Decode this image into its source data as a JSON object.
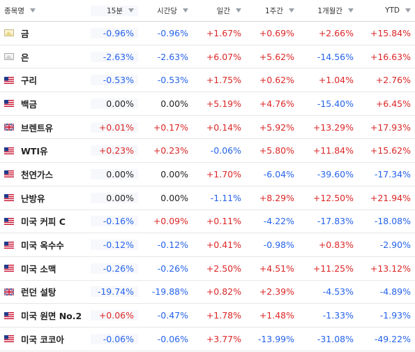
{
  "header": {
    "name": "종목명",
    "cols": [
      "15분",
      "시간당",
      "일간",
      "1주간",
      "1개월간",
      "YTD"
    ]
  },
  "colors": {
    "positive": "#dc2626",
    "negative": "#2563eb",
    "neutral": "#222222"
  },
  "rows": [
    {
      "name": "금",
      "flag": "gold-icon",
      "values": [
        "-0.96%",
        "-0.96%",
        "+1.67%",
        "+0.69%",
        "+2.66%",
        "+15.84%"
      ]
    },
    {
      "name": "은",
      "flag": "silver-icon",
      "values": [
        "-2.63%",
        "-2.63%",
        "+6.07%",
        "+5.62%",
        "-14.56%",
        "+16.63%"
      ]
    },
    {
      "name": "구리",
      "flag": "us-flag-icon",
      "values": [
        "-0.53%",
        "-0.53%",
        "+1.75%",
        "+0.62%",
        "+1.04%",
        "+2.76%"
      ]
    },
    {
      "name": "백금",
      "flag": "us-flag-icon",
      "values": [
        "0.00%",
        "0.00%",
        "+5.19%",
        "+4.76%",
        "-15.40%",
        "+6.45%"
      ]
    },
    {
      "name": "브렌트유",
      "flag": "uk-flag-icon",
      "values": [
        "+0.01%",
        "+0.17%",
        "+0.14%",
        "+5.92%",
        "+13.29%",
        "+17.93%"
      ]
    },
    {
      "name": "WTI유",
      "flag": "us-flag-icon",
      "values": [
        "+0.23%",
        "+0.23%",
        "-0.06%",
        "+5.80%",
        "+11.84%",
        "+15.62%"
      ]
    },
    {
      "name": "천연가스",
      "flag": "us-flag-icon",
      "values": [
        "0.00%",
        "0.00%",
        "+1.70%",
        "-6.04%",
        "-39.60%",
        "-17.34%"
      ]
    },
    {
      "name": "난방유",
      "flag": "us-flag-icon",
      "values": [
        "0.00%",
        "0.00%",
        "-1.11%",
        "+8.29%",
        "+12.50%",
        "+21.94%"
      ]
    },
    {
      "name": "미국 커피 C",
      "flag": "us-flag-icon",
      "values": [
        "-0.16%",
        "+0.09%",
        "+0.11%",
        "-4.22%",
        "-17.83%",
        "-18.08%"
      ]
    },
    {
      "name": "미국 옥수수",
      "flag": "us-flag-icon",
      "values": [
        "-0.12%",
        "-0.12%",
        "+0.41%",
        "-0.98%",
        "+0.83%",
        "-2.90%"
      ]
    },
    {
      "name": "미국 소맥",
      "flag": "us-flag-icon",
      "values": [
        "-0.26%",
        "-0.26%",
        "+2.50%",
        "+4.51%",
        "+11.25%",
        "+13.12%"
      ]
    },
    {
      "name": "런던 설탕",
      "flag": "uk-flag-icon",
      "values": [
        "-19.74%",
        "-19.88%",
        "+0.82%",
        "+2.39%",
        "-4.53%",
        "-4.89%"
      ]
    },
    {
      "name": "미국 원면 No.2",
      "flag": "us-flag-icon",
      "values": [
        "+0.06%",
        "-0.47%",
        "+1.78%",
        "+1.48%",
        "-1.33%",
        "-1.93%"
      ]
    },
    {
      "name": "미국 코코아",
      "flag": "us-flag-icon",
      "values": [
        "-0.06%",
        "-0.06%",
        "+3.77%",
        "-13.99%",
        "-31.08%",
        "-49.22%"
      ]
    }
  ]
}
